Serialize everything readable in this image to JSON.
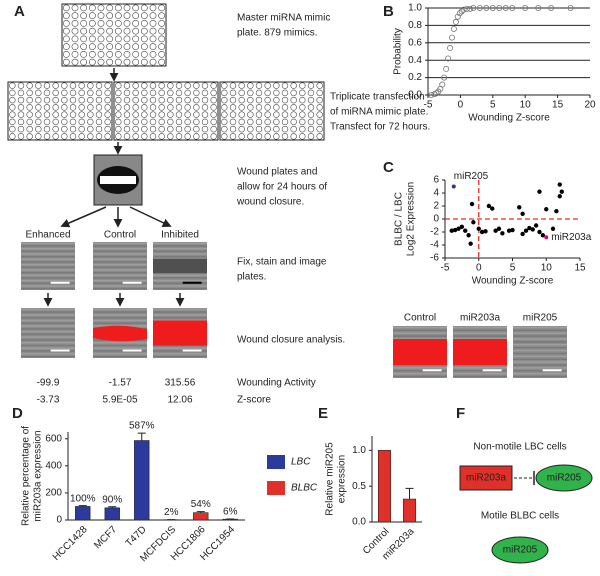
{
  "workflow": {
    "label": "A",
    "steps": [
      [
        "Master miRNA mimic",
        "plate.  879 mimics."
      ],
      [
        "Triplicate transfection",
        "of miRNA mimic plate.",
        "Transfect for 72 hours."
      ],
      [
        "Wound plates and",
        "allow for 24 hours of",
        "wound closure."
      ],
      [
        "Fix, stain and image",
        "plates."
      ],
      [
        "Wound closure analysis."
      ]
    ],
    "conditions": [
      "Enhanced",
      "Control",
      "Inhibited"
    ],
    "row_labels": [
      "Wounding Activity",
      "Z-score"
    ],
    "wounding_activity": [
      -99.9,
      -1.57,
      315.56
    ],
    "z_scores": {
      "values": [
        -3.73,
        5.9e-05,
        12.06
      ],
      "value_labels": [
        "-3.73",
        "5.9E-05",
        "12.06"
      ]
    }
  },
  "chart_data": [
    {
      "type": "scatter",
      "label": "B",
      "xlabel": "Wounding Z-score",
      "ylabel": "Probability",
      "marker": "open",
      "color": "#777777",
      "x": [
        -4.5,
        -4,
        -3.7,
        -3.4,
        -3.1,
        -2.8,
        -2.5,
        -2.2,
        -1.9,
        -1.6,
        -1.3,
        -1.0,
        -0.7,
        -0.4,
        -0.1,
        0.2,
        0.5,
        1,
        1.5,
        2,
        3,
        4,
        5,
        6,
        7,
        8,
        10,
        12,
        14,
        17
      ],
      "y": [
        0.0,
        0.01,
        0.02,
        0.04,
        0.07,
        0.12,
        0.2,
        0.3,
        0.42,
        0.54,
        0.66,
        0.76,
        0.84,
        0.9,
        0.94,
        0.96,
        0.98,
        0.99,
        0.99,
        1.0,
        1.0,
        1.0,
        1.0,
        1.0,
        1.0,
        1.0,
        1.0,
        1.0,
        1.0,
        1.0
      ],
      "xlim": [
        -5,
        20
      ],
      "xticks": [
        -5,
        0,
        5,
        10,
        15,
        20
      ],
      "ylim": [
        0,
        1
      ],
      "yticks": [
        {
          "value": 0,
          "label": "0.0"
        },
        0.2,
        0.4,
        0.6,
        0.8,
        {
          "value": 1,
          "label": "1.0"
        }
      ],
      "grid": true
    },
    {
      "type": "scatter",
      "label": "C",
      "xlabel": "Wounding Z-score",
      "ylabel": [
        "BLBC / LBC",
        "Log2 Expression"
      ],
      "marker": "filled",
      "color": "#000000",
      "x": [
        -4,
        -3.5,
        -3,
        -2.5,
        -2,
        -1.5,
        -1.2,
        -1,
        -0.8,
        0,
        0.5,
        1,
        1.5,
        2,
        2.5,
        3,
        3.5,
        4.5,
        5,
        6,
        6.5,
        7,
        7.5,
        8,
        8.5,
        9,
        9.5,
        10,
        11,
        11.5,
        12,
        12,
        12.3,
        9,
        6.5
      ],
      "y": [
        -1.8,
        -1.7,
        -1.5,
        -1.2,
        -1.8,
        -2.5,
        -3.8,
        2.3,
        -0.5,
        -1.5,
        -2,
        -1.9,
        2,
        1.6,
        -1.8,
        -1.5,
        -2.2,
        -1.8,
        -1.7,
        1.8,
        0.8,
        -1.8,
        -1.4,
        -1.6,
        -1,
        4.2,
        -2.5,
        1.5,
        -1.5,
        1.2,
        3.5,
        5.3,
        4.2,
        -2,
        -2.3
      ],
      "annotations": [
        {
          "text": "miR205",
          "x": -3.7,
          "y": 5,
          "color": "#2e3192"
        },
        {
          "text": "miR203a",
          "x": 10,
          "y": -2.8,
          "color": "#e6007e"
        }
      ],
      "ref_lines": {
        "x": [
          0
        ],
        "y": [
          0
        ],
        "color": "#e0302a"
      },
      "xlim": [
        -5,
        15
      ],
      "xticks": [
        -5,
        0,
        5,
        10,
        15
      ],
      "ylim": [
        -6,
        6
      ],
      "yticks": [
        -6,
        -4,
        -2,
        0,
        2,
        4,
        6
      ],
      "image_labels": [
        "Control",
        "miR203a",
        "miR205"
      ]
    },
    {
      "type": "bar",
      "label": "D",
      "ylabel": [
        "Relative percentage of",
        "miR203a expression"
      ],
      "legend": "right",
      "categories": [
        "HCC1428",
        "MCF7",
        "T47D",
        "MCFDCIS",
        "HCC1806",
        "HCC1954"
      ],
      "series": [
        {
          "name": "LBC",
          "color": "#2b3a9b",
          "values": [
            100,
            90,
            587,
            null,
            null,
            null
          ],
          "errors": [
            6,
            8,
            55,
            null,
            null,
            null
          ],
          "value_labels": [
            "100%",
            "90%",
            "587%",
            null,
            null,
            null
          ]
        },
        {
          "name": "BLBC",
          "color": "#e0302a",
          "values": [
            null,
            null,
            null,
            2,
            54,
            6
          ],
          "errors": [
            null,
            null,
            null,
            1,
            8,
            1
          ],
          "value_labels": [
            null,
            null,
            null,
            "2%",
            "54%",
            "6%"
          ]
        }
      ],
      "ylim": [
        0,
        650
      ],
      "yticks": [
        0,
        200,
        400,
        600
      ]
    },
    {
      "type": "bar",
      "label": "E",
      "ylabel": [
        "Relative miR205",
        "expression"
      ],
      "categories": [
        "Control",
        "miR203a"
      ],
      "series": [
        {
          "color": "#e0302a",
          "values": [
            1.0,
            0.32
          ],
          "errors": [
            0,
            0.15
          ]
        }
      ],
      "ylim": [
        0,
        1.2
      ],
      "yticks": [
        {
          "value": 0,
          "label": "0.0"
        },
        0.5,
        {
          "value": 1,
          "label": "1.0"
        }
      ]
    }
  ],
  "model": {
    "label": "F",
    "top_title": "Non-motile LBC cells",
    "inhibitor": "miR203a",
    "target": "miR205",
    "bottom_title": "Motile BLBC cells",
    "bottom_target": "miR205"
  }
}
